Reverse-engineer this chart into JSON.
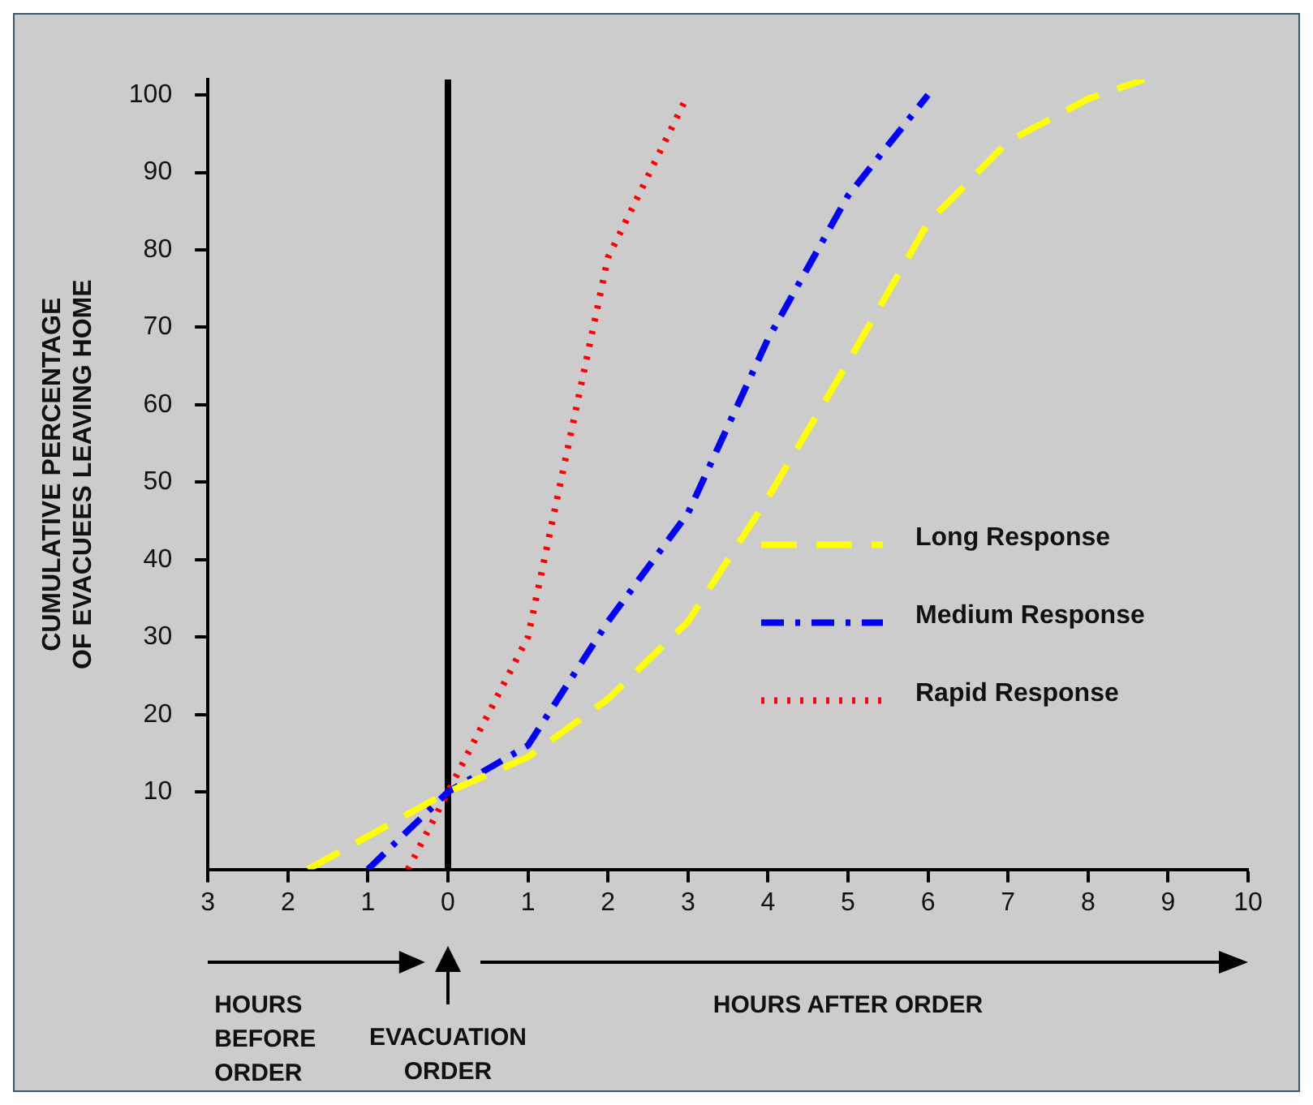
{
  "chart_data": {
    "type": "line",
    "ylabel": "CUMULATIVE PERCENTAGE OF EVACUEES LEAVING HOME",
    "xlim": [
      -3,
      10
    ],
    "ylim": [
      0,
      102
    ],
    "xticks": [
      {
        "value": -3,
        "label": "3"
      },
      {
        "value": -2,
        "label": "2"
      },
      {
        "value": -1,
        "label": "1"
      },
      0,
      1,
      2,
      3,
      4,
      5,
      6,
      7,
      8,
      9,
      10
    ],
    "yticks": [
      10,
      20,
      30,
      40,
      50,
      60,
      70,
      80,
      90,
      100
    ],
    "grid": false,
    "legend": "bottom right",
    "marker": "none",
    "series": [
      {
        "name": "Long Response",
        "color": "#ffff00",
        "line_style": "dashed",
        "x": [
          -1.75,
          0,
          1,
          2,
          3,
          4,
          5,
          6,
          7,
          8,
          8.7
        ],
        "values": [
          0,
          10,
          14.5,
          22,
          32,
          48,
          65.5,
          83.5,
          94,
          99.5,
          102
        ]
      },
      {
        "name": "Medium Response",
        "color": "#0000ff",
        "line_style": "dashdot",
        "x": [
          -1,
          0,
          1,
          2,
          3,
          4,
          5,
          6
        ],
        "values": [
          0,
          10,
          16,
          32,
          46,
          68.5,
          87,
          100
        ]
      },
      {
        "name": "Rapid Response",
        "color": "#ff0000",
        "line_style": "dotted",
        "x": [
          -0.5,
          0,
          1,
          2,
          2.95
        ],
        "values": [
          0,
          10,
          30,
          79,
          99
        ]
      }
    ],
    "ref_lines": [
      {
        "axis": "x",
        "value": 0,
        "color": "#000000",
        "line_style": "solid"
      }
    ],
    "annotations": [
      "HOURS BEFORE ORDER",
      "EVACUATION ORDER",
      "HOURS AFTER ORDER"
    ]
  }
}
